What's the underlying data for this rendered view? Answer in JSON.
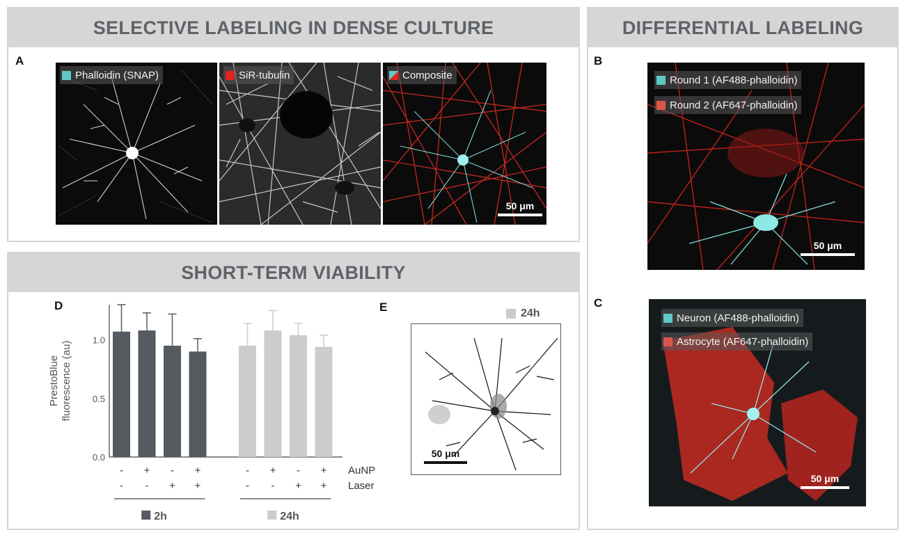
{
  "panels": {
    "selective": {
      "title": "SELECTIVE LABELING IN DENSE CULTURE",
      "letter": "A"
    },
    "differential": {
      "title": "DIFFERENTIAL LABELING",
      "letter_b": "B",
      "letter_c": "C"
    },
    "viability": {
      "title": "SHORT-TERM VIABILITY",
      "letter_d": "D",
      "letter_e": "E"
    }
  },
  "panel_a": {
    "images": [
      {
        "label": "Phalloidin (SNAP)",
        "swatch": "#5fc9c6"
      },
      {
        "label": "SiR-tubulin",
        "swatch": "#e0241d"
      },
      {
        "label": "Composite",
        "swatch": "split-cyan-red"
      }
    ],
    "scale_bar": "50 μm"
  },
  "panel_b": {
    "labels": [
      {
        "text": "Round 1 (AF488-phalloidin)",
        "swatch": "#5fc9c6"
      },
      {
        "text": "Round 2 (AF647-phalloidin)",
        "swatch": "#d9574a"
      }
    ],
    "scale_bar": "50 μm"
  },
  "panel_c": {
    "labels": [
      {
        "text": "Neuron (AF488-phalloidin)",
        "swatch": "#5fc9c6"
      },
      {
        "text": "Astrocyte (AF647-phalloidin)",
        "swatch": "#d9574a"
      }
    ],
    "scale_bar": "50 μm"
  },
  "panel_e": {
    "legend": "24h",
    "legend_color": "#cccccc",
    "scale_bar": "50 μm"
  },
  "chart_data": {
    "type": "bar",
    "ylabel_line1": "PrestoBlue",
    "ylabel_line2": "fluorescence (au)",
    "ylim": [
      0,
      1.3
    ],
    "yticks": [
      "0.0",
      "0.5",
      "1.0"
    ],
    "row_labels": [
      "AuNP",
      "Laser"
    ],
    "groups": [
      {
        "name": "2h",
        "color": "#555a60",
        "values": [
          1.07,
          1.08,
          0.95,
          0.9
        ],
        "errors": [
          0.23,
          0.15,
          0.27,
          0.11
        ],
        "aunp": [
          "-",
          "+",
          "-",
          "+"
        ],
        "laser": [
          "-",
          "-",
          "+",
          "+"
        ]
      },
      {
        "name": "24h",
        "color": "#cccccc",
        "values": [
          0.95,
          1.08,
          1.04,
          0.94
        ],
        "errors": [
          0.19,
          0.17,
          0.1,
          0.1
        ],
        "aunp": [
          "-",
          "+",
          "-",
          "+"
        ],
        "laser": [
          "-",
          "-",
          "+",
          "+"
        ]
      }
    ]
  }
}
